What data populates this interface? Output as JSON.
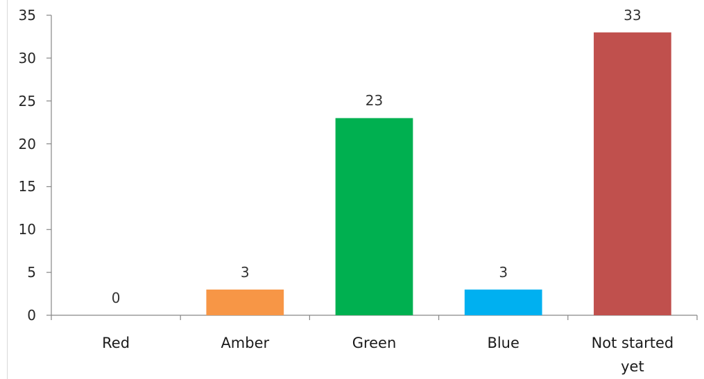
{
  "chart_data": {
    "type": "bar",
    "title": "",
    "xlabel": "",
    "ylabel": "",
    "categories": [
      "Red",
      "Amber",
      "Green",
      "Blue",
      "Not started yet"
    ],
    "values": [
      0,
      3,
      23,
      3,
      33
    ],
    "colors": [
      null,
      "#F79646",
      "#00B050",
      "#00B0F0",
      "#C0504D"
    ],
    "ylim": [
      0,
      35
    ],
    "yticks": [
      0,
      5,
      10,
      15,
      20,
      25,
      30,
      35
    ],
    "data_labels": true,
    "grid": false,
    "legend": "none",
    "axis_color": "#868686"
  }
}
